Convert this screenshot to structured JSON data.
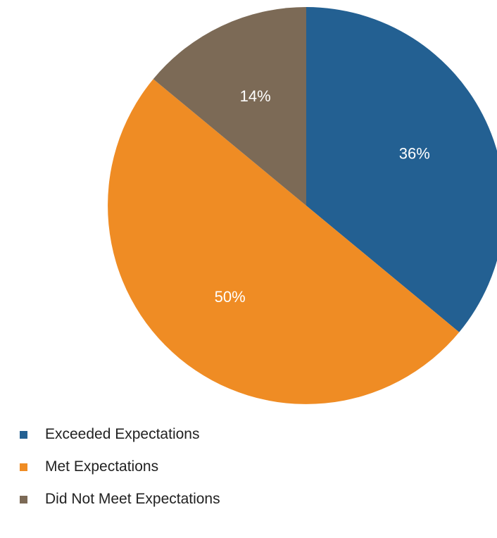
{
  "chart_data": {
    "type": "pie",
    "categories": [
      "Exceeded Expectations",
      "Met Expectations",
      "Did Not Meet Expectations"
    ],
    "values": [
      36,
      50,
      14
    ],
    "labels": [
      "36%",
      "50%",
      "14%"
    ],
    "colors": [
      "#236092",
      "#ef8c24",
      "#7c6a56"
    ],
    "legend_position": "bottom-left",
    "start_angle": "top, clockwise"
  },
  "legend": {
    "items": [
      {
        "label": "Exceeded Expectations",
        "color": "#236092"
      },
      {
        "label": "Met Expectations",
        "color": "#ef8c24"
      },
      {
        "label": "Did Not Meet Expectations",
        "color": "#7c6a56"
      }
    ]
  }
}
